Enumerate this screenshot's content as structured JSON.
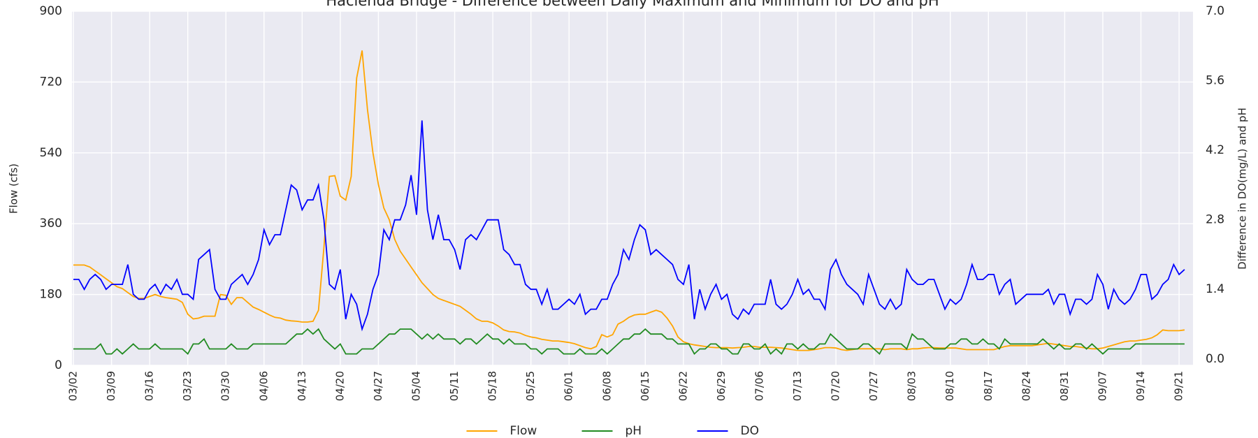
{
  "chart_data": {
    "type": "line",
    "title": "Hacienda Bridge - Difference between Daily Maximum and Minimum for DO and pH",
    "y_label": "Flow (cfs)",
    "y2_label": "Difference in DO(mg/L) and pH",
    "categories": [
      "03/02",
      null,
      null,
      null,
      null,
      null,
      null,
      "03/09",
      null,
      null,
      null,
      null,
      null,
      null,
      "03/16",
      null,
      null,
      null,
      null,
      null,
      null,
      "03/23",
      null,
      null,
      null,
      null,
      null,
      null,
      "03/30",
      null,
      null,
      null,
      null,
      null,
      null,
      "04/06",
      null,
      null,
      null,
      null,
      null,
      null,
      "04/13",
      null,
      null,
      null,
      null,
      null,
      null,
      "04/20",
      null,
      null,
      null,
      null,
      null,
      null,
      "04/27",
      null,
      null,
      null,
      null,
      null,
      null,
      "05/04",
      null,
      null,
      null,
      null,
      null,
      null,
      "05/11",
      null,
      null,
      null,
      null,
      null,
      null,
      "05/18",
      null,
      null,
      null,
      null,
      null,
      null,
      "05/25",
      null,
      null,
      null,
      null,
      null,
      null,
      "06/01",
      null,
      null,
      null,
      null,
      null,
      null,
      "06/08",
      null,
      null,
      null,
      null,
      null,
      null,
      "06/15",
      null,
      null,
      null,
      null,
      null,
      null,
      "06/22",
      null,
      null,
      null,
      null,
      null,
      null,
      "06/29",
      null,
      null,
      null,
      null,
      null,
      null,
      "07/06",
      null,
      null,
      null,
      null,
      null,
      null,
      "07/13",
      null,
      null,
      null,
      null,
      null,
      null,
      "07/20",
      null,
      null,
      null,
      null,
      null,
      null,
      "07/27",
      null,
      null,
      null,
      null,
      null,
      null,
      "08/03",
      null,
      null,
      null,
      null,
      null,
      null,
      "08/10",
      null,
      null,
      null,
      null,
      null,
      null,
      "08/17",
      null,
      null,
      null,
      null,
      null,
      null,
      "08/24",
      null,
      null,
      null,
      null,
      null,
      null,
      "08/31",
      null,
      null,
      null,
      null,
      null,
      null,
      "09/07",
      null,
      null,
      null,
      null,
      null,
      null,
      "09/14",
      null,
      null,
      null,
      null,
      null,
      null,
      "09/21",
      null
    ],
    "series": [
      {
        "name": "Flow",
        "color": "#ffa500",
        "axis": "y",
        "values": [
          255,
          255,
          255,
          250,
          240,
          230,
          220,
          210,
          200,
          195,
          185,
          175,
          170,
          170,
          175,
          180,
          175,
          172,
          170,
          168,
          160,
          130,
          118,
          120,
          125,
          125,
          125,
          180,
          178,
          155,
          172,
          172,
          160,
          148,
          142,
          135,
          128,
          122,
          120,
          115,
          113,
          112,
          110,
          110,
          112,
          140,
          300,
          480,
          482,
          430,
          420,
          480,
          730,
          800,
          650,
          540,
          460,
          400,
          370,
          320,
          290,
          270,
          250,
          230,
          210,
          195,
          180,
          170,
          165,
          160,
          155,
          150,
          140,
          130,
          118,
          112,
          112,
          108,
          100,
          90,
          86,
          85,
          82,
          76,
          72,
          70,
          66,
          64,
          62,
          62,
          60,
          58,
          55,
          50,
          45,
          42,
          48,
          78,
          72,
          78,
          105,
          112,
          122,
          128,
          130,
          130,
          135,
          140,
          135,
          120,
          100,
          72,
          60,
          55,
          52,
          50,
          48,
          46,
          45,
          45,
          45,
          44,
          45,
          46,
          48,
          48,
          46,
          46,
          46,
          45,
          44,
          42,
          40,
          38,
          38,
          38,
          40,
          42,
          45,
          45,
          44,
          40,
          38,
          40,
          42,
          42,
          42,
          42,
          42,
          40,
          42,
          42,
          42,
          40,
          42,
          42,
          44,
          45,
          45,
          44,
          44,
          44,
          44,
          42,
          40,
          40,
          40,
          40,
          40,
          40,
          44,
          48,
          50,
          50,
          50,
          50,
          50,
          52,
          54,
          56,
          54,
          52,
          50,
          48,
          48,
          46,
          44,
          42,
          42,
          44,
          48,
          52,
          56,
          60,
          62,
          62,
          64,
          66,
          70,
          78,
          90,
          88,
          88,
          88,
          90
        ]
      },
      {
        "name": "pH",
        "color": "#228b22",
        "axis": "y2",
        "values": [
          0.2,
          0.2,
          0.2,
          0.2,
          0.2,
          0.3,
          0.1,
          0.1,
          0.2,
          0.1,
          0.2,
          0.3,
          0.2,
          0.2,
          0.2,
          0.3,
          0.2,
          0.2,
          0.2,
          0.2,
          0.2,
          0.1,
          0.3,
          0.3,
          0.4,
          0.2,
          0.2,
          0.2,
          0.2,
          0.3,
          0.2,
          0.2,
          0.2,
          0.3,
          0.3,
          0.3,
          0.3,
          0.3,
          0.3,
          0.3,
          0.4,
          0.5,
          0.5,
          0.6,
          0.5,
          0.6,
          0.4,
          0.3,
          0.2,
          0.3,
          0.1,
          0.1,
          0.1,
          0.2,
          0.2,
          0.2,
          0.3,
          0.4,
          0.5,
          0.5,
          0.6,
          0.6,
          0.6,
          0.5,
          0.4,
          0.5,
          0.4,
          0.5,
          0.4,
          0.4,
          0.4,
          0.3,
          0.4,
          0.4,
          0.3,
          0.4,
          0.5,
          0.4,
          0.4,
          0.3,
          0.4,
          0.3,
          0.3,
          0.3,
          0.2,
          0.2,
          0.1,
          0.2,
          0.2,
          0.2,
          0.1,
          0.1,
          0.1,
          0.2,
          0.1,
          0.1,
          0.1,
          0.2,
          0.1,
          0.2,
          0.3,
          0.4,
          0.4,
          0.5,
          0.5,
          0.6,
          0.5,
          0.5,
          0.5,
          0.4,
          0.4,
          0.3,
          0.3,
          0.3,
          0.1,
          0.2,
          0.2,
          0.3,
          0.3,
          0.2,
          0.2,
          0.1,
          0.1,
          0.3,
          0.3,
          0.2,
          0.2,
          0.3,
          0.1,
          0.2,
          0.1,
          0.3,
          0.3,
          0.2,
          0.3,
          0.2,
          0.2,
          0.3,
          0.3,
          0.5,
          0.4,
          0.3,
          0.2,
          0.2,
          0.2,
          0.3,
          0.3,
          0.2,
          0.1,
          0.3,
          0.3,
          0.3,
          0.3,
          0.2,
          0.5,
          0.4,
          0.4,
          0.3,
          0.2,
          0.2,
          0.2,
          0.3,
          0.3,
          0.4,
          0.4,
          0.3,
          0.3,
          0.4,
          0.3,
          0.3,
          0.2,
          0.4,
          0.3,
          0.3,
          0.3,
          0.3,
          0.3,
          0.3,
          0.4,
          0.3,
          0.2,
          0.3,
          0.2,
          0.2,
          0.3,
          0.3,
          0.2,
          0.3,
          0.2,
          0.1,
          0.2,
          0.2,
          0.2,
          0.2,
          0.2,
          0.3,
          0.3,
          0.3,
          0.3,
          0.3,
          0.3,
          0.3,
          0.3,
          0.3,
          0.3
        ]
      },
      {
        "name": "DO",
        "color": "#0000ff",
        "axis": "y2",
        "values": [
          1.6,
          1.6,
          1.4,
          1.6,
          1.7,
          1.6,
          1.4,
          1.5,
          1.5,
          1.5,
          1.9,
          1.3,
          1.2,
          1.2,
          1.4,
          1.5,
          1.3,
          1.5,
          1.4,
          1.6,
          1.3,
          1.3,
          1.2,
          2.0,
          2.1,
          2.2,
          1.4,
          1.2,
          1.2,
          1.5,
          1.6,
          1.7,
          1.5,
          1.7,
          2.0,
          2.6,
          2.3,
          2.5,
          2.5,
          3.0,
          3.5,
          3.4,
          3.0,
          3.2,
          3.2,
          3.5,
          2.8,
          1.5,
          1.4,
          1.8,
          0.8,
          1.3,
          1.1,
          0.6,
          0.9,
          1.4,
          1.7,
          2.6,
          2.4,
          2.8,
          2.8,
          3.1,
          3.7,
          2.9,
          4.8,
          3.0,
          2.4,
          2.9,
          2.4,
          2.4,
          2.2,
          1.8,
          2.4,
          2.5,
          2.4,
          2.6,
          2.8,
          2.8,
          2.8,
          2.2,
          2.1,
          1.9,
          1.9,
          1.5,
          1.4,
          1.4,
          1.1,
          1.4,
          1.0,
          1.0,
          1.1,
          1.2,
          1.1,
          1.3,
          0.9,
          1.0,
          1.0,
          1.2,
          1.2,
          1.5,
          1.7,
          2.2,
          2.0,
          2.4,
          2.7,
          2.6,
          2.1,
          2.2,
          2.1,
          2.0,
          1.9,
          1.6,
          1.5,
          1.9,
          0.8,
          1.4,
          1.0,
          1.3,
          1.5,
          1.2,
          1.3,
          0.9,
          0.8,
          1.0,
          0.9,
          1.1,
          1.1,
          1.1,
          1.6,
          1.1,
          1.0,
          1.1,
          1.3,
          1.6,
          1.3,
          1.4,
          1.2,
          1.2,
          1.0,
          1.8,
          2.0,
          1.7,
          1.5,
          1.4,
          1.3,
          1.1,
          1.7,
          1.4,
          1.1,
          1.0,
          1.2,
          1.0,
          1.1,
          1.8,
          1.6,
          1.5,
          1.5,
          1.6,
          1.6,
          1.3,
          1.0,
          1.2,
          1.1,
          1.2,
          1.5,
          1.9,
          1.6,
          1.6,
          1.7,
          1.7,
          1.3,
          1.5,
          1.6,
          1.1,
          1.2,
          1.3,
          1.3,
          1.3,
          1.3,
          1.4,
          1.1,
          1.3,
          1.3,
          0.9,
          1.2,
          1.2,
          1.1,
          1.2,
          1.7,
          1.5,
          1.0,
          1.4,
          1.2,
          1.1,
          1.2,
          1.4,
          1.7,
          1.7,
          1.2,
          1.3,
          1.5,
          1.6,
          1.9,
          1.7,
          1.8
        ]
      }
    ],
    "ylim": [
      0,
      900
    ],
    "yticks": [
      0,
      180,
      360,
      540,
      720,
      900
    ],
    "y2lim": [
      -0.13,
      7
    ],
    "y2ticks": [
      {
        "value": 0,
        "label": "0.0"
      },
      1.4,
      2.8,
      4.2,
      5.6,
      {
        "value": 7,
        "label": "7.0"
      }
    ],
    "grid": true,
    "legend": "bottom"
  }
}
